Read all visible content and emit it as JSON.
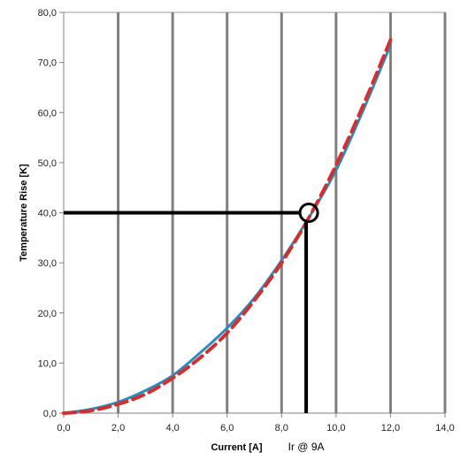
{
  "chart_data": {
    "type": "line",
    "title": "",
    "xlabel": "Current [A]",
    "ylabel": "Temperature Rise [K]",
    "xlim": [
      0,
      14
    ],
    "ylim": [
      0,
      80
    ],
    "x_ticks": [
      0,
      2,
      4,
      6,
      8,
      10,
      12,
      14
    ],
    "y_ticks": [
      0,
      10,
      20,
      30,
      40,
      50,
      60,
      70,
      80
    ],
    "x_tick_labels": [
      "0,0",
      "2,0",
      "4,0",
      "6,0",
      "8,0",
      "10,0",
      "12,0",
      "14,0"
    ],
    "y_tick_labels": [
      "0,0",
      "10,0",
      "20,0",
      "30,0",
      "40,0",
      "50,0",
      "60,0",
      "70,0",
      "80,0"
    ],
    "grid": "vertical",
    "legend": "none",
    "series": [
      {
        "style": "solid",
        "color": "#2b8bbf",
        "x": [
          0,
          1,
          2,
          3,
          4,
          5,
          6,
          7,
          8,
          9,
          10,
          11,
          12
        ],
        "y": [
          0,
          0.8,
          2.2,
          4.5,
          7.5,
          12.0,
          17.0,
          23.0,
          30.5,
          39.0,
          48.5,
          60.5,
          73.5
        ]
      },
      {
        "style": "dashed",
        "color": "#d32f2f",
        "x": [
          0,
          1,
          2,
          3,
          4,
          5,
          6,
          7,
          8,
          9,
          10,
          11,
          12
        ],
        "y": [
          0,
          0.5,
          1.8,
          3.8,
          7.0,
          11.0,
          16.0,
          22.5,
          30.0,
          39.0,
          49.5,
          61.5,
          74.5
        ]
      }
    ],
    "annotation": {
      "label": "Ir @ 9A",
      "x": 9,
      "y": 40
    }
  }
}
